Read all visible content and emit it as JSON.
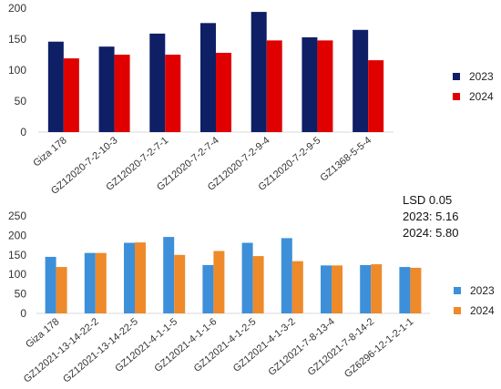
{
  "chart_data": [
    {
      "type": "bar",
      "categories": [
        "Giza 178",
        "GZ12020-7-2-10-3",
        "GZ12020-7-2-7-1",
        "GZ12020-7-2-7-4",
        "GZ12020-7-2-9-4",
        "GZ12020-7-2-9-5",
        "GZ1368-5-5-4"
      ],
      "series": [
        {
          "name": "2023",
          "values": [
            146,
            138,
            159,
            176,
            194,
            153,
            165
          ],
          "color": "#0f1f66"
        },
        {
          "name": "2024",
          "values": [
            119,
            125,
            125,
            128,
            148,
            148,
            116
          ],
          "color": "#e00000"
        }
      ],
      "yticks": [
        0,
        50,
        100,
        150,
        200
      ],
      "ylim": [
        0,
        200
      ],
      "legend": "right",
      "grid": false
    },
    {
      "type": "bar",
      "categories": [
        "Giza 178",
        "GZ12021-13-14-22-2",
        "GZ12021-13-14-22-5",
        "GZ12021-4-1-1-5",
        "GZ12021-4-1-1-6",
        "GZ12021-4-1-2-5",
        "GZ12021-4-1-3-2",
        "GZ12021-7-8-13-4",
        "GZ12021-7-8-14-2",
        "GZ6296-12-1-2-1-1"
      ],
      "series": [
        {
          "name": "2023",
          "values": [
            145,
            155,
            181,
            196,
            124,
            181,
            193,
            123,
            124,
            119
          ],
          "color": "#3d8fd9"
        },
        {
          "name": "2024",
          "values": [
            119,
            155,
            182,
            150,
            160,
            147,
            134,
            123,
            126,
            117
          ],
          "color": "#ee8a2a"
        }
      ],
      "yticks": [
        0,
        50,
        100,
        150,
        200,
        250
      ],
      "ylim": [
        0,
        250
      ],
      "legend": "right",
      "grid": false
    }
  ],
  "annotation": {
    "line1": "LSD 0.05",
    "line2": "2023: 5.16",
    "line3": "2024: 5.80"
  }
}
